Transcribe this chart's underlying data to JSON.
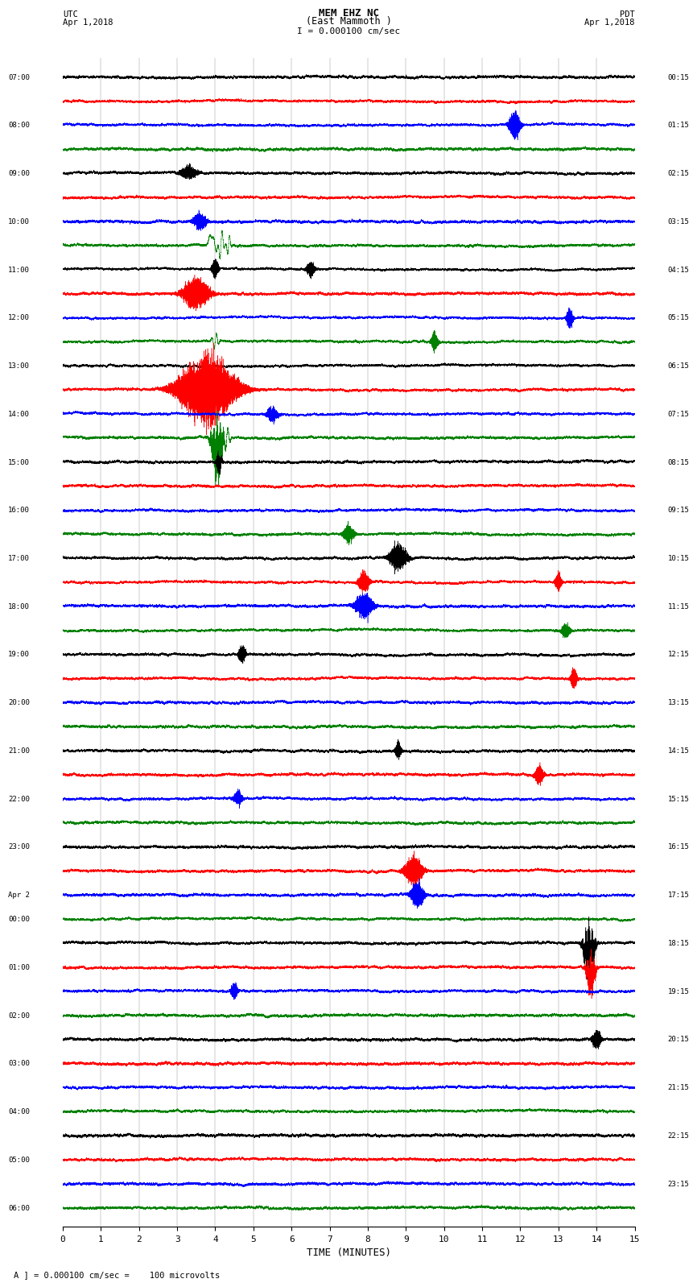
{
  "title_line1": "MEM EHZ NC",
  "title_line2": "(East Mammoth )",
  "title_line3": "I = 0.000100 cm/sec",
  "left_header_line1": "UTC",
  "left_header_line2": "Apr 1,2018",
  "right_header_line1": "PDT",
  "right_header_line2": "Apr 1,2018",
  "xlabel": "TIME (MINUTES)",
  "footer": "A ] = 0.000100 cm/sec =    100 microvolts",
  "utc_labels": [
    "07:00",
    "",
    "08:00",
    "",
    "09:00",
    "",
    "10:00",
    "",
    "11:00",
    "",
    "12:00",
    "",
    "13:00",
    "",
    "14:00",
    "",
    "15:00",
    "",
    "16:00",
    "",
    "17:00",
    "",
    "18:00",
    "",
    "19:00",
    "",
    "20:00",
    "",
    "21:00",
    "",
    "22:00",
    "",
    "23:00",
    "",
    "Apr 2",
    "00:00",
    "",
    "01:00",
    "",
    "02:00",
    "",
    "03:00",
    "",
    "04:00",
    "",
    "05:00",
    "",
    "06:00",
    ""
  ],
  "pdt_labels": [
    "00:15",
    "",
    "01:15",
    "",
    "02:15",
    "",
    "03:15",
    "",
    "04:15",
    "",
    "05:15",
    "",
    "06:15",
    "",
    "07:15",
    "",
    "08:15",
    "",
    "09:15",
    "",
    "10:15",
    "",
    "11:15",
    "",
    "12:15",
    "",
    "13:15",
    "",
    "14:15",
    "",
    "15:15",
    "",
    "16:15",
    "",
    "17:15",
    "",
    "18:15",
    "",
    "19:15",
    "",
    "20:15",
    "",
    "21:15",
    "",
    "22:15",
    "",
    "23:15",
    ""
  ],
  "num_traces": 48,
  "minutes": 15,
  "sample_rate": 50,
  "trace_colors_cycle": [
    "black",
    "red",
    "blue",
    "green"
  ],
  "background_color": "white",
  "noise_amplitude": 0.012,
  "fig_width": 8.5,
  "fig_height": 16.13,
  "special_events": [
    {
      "trace": 2,
      "minute": 11.85,
      "amplitude": 0.55,
      "duration": 0.5,
      "style": "burst"
    },
    {
      "trace": 4,
      "minute": 3.3,
      "amplitude": 0.25,
      "duration": 0.8,
      "style": "burst"
    },
    {
      "trace": 6,
      "minute": 3.6,
      "amplitude": 0.35,
      "duration": 0.6,
      "style": "burst"
    },
    {
      "trace": 7,
      "minute": 3.9,
      "amplitude": 1.8,
      "duration": 0.4,
      "style": "spike_multi"
    },
    {
      "trace": 7,
      "minute": 4.15,
      "amplitude": 1.5,
      "duration": 0.25,
      "style": "spike"
    },
    {
      "trace": 7,
      "minute": 4.35,
      "amplitude": 1.1,
      "duration": 0.2,
      "style": "spike"
    },
    {
      "trace": 8,
      "minute": 4.0,
      "amplitude": 0.4,
      "duration": 0.3,
      "style": "burst"
    },
    {
      "trace": 8,
      "minute": 6.5,
      "amplitude": 0.3,
      "duration": 0.4,
      "style": "burst"
    },
    {
      "trace": 9,
      "minute": 3.5,
      "amplitude": 0.6,
      "duration": 1.2,
      "style": "burst"
    },
    {
      "trace": 10,
      "minute": 13.3,
      "amplitude": 0.4,
      "duration": 0.3,
      "style": "burst"
    },
    {
      "trace": 11,
      "minute": 4.0,
      "amplitude": 0.8,
      "duration": 0.3,
      "style": "spike"
    },
    {
      "trace": 11,
      "minute": 9.75,
      "amplitude": 0.4,
      "duration": 0.3,
      "style": "burst"
    },
    {
      "trace": 13,
      "minute": 3.8,
      "amplitude": 1.3,
      "duration": 2.5,
      "style": "burst"
    },
    {
      "trace": 14,
      "minute": 5.5,
      "amplitude": 0.3,
      "duration": 0.5,
      "style": "burst"
    },
    {
      "trace": 15,
      "minute": 4.05,
      "amplitude": 2.2,
      "duration": 0.5,
      "style": "spike_down"
    },
    {
      "trace": 15,
      "minute": 4.3,
      "amplitude": 1.0,
      "duration": 0.3,
      "style": "spike"
    },
    {
      "trace": 16,
      "minute": 4.1,
      "amplitude": 0.4,
      "duration": 0.25,
      "style": "burst"
    },
    {
      "trace": 16,
      "minute": 4.15,
      "amplitude": 0.35,
      "duration": 0.15,
      "style": "spike"
    },
    {
      "trace": 19,
      "minute": 7.5,
      "amplitude": 0.35,
      "duration": 0.5,
      "style": "burst"
    },
    {
      "trace": 20,
      "minute": 8.8,
      "amplitude": 0.5,
      "duration": 0.8,
      "style": "burst"
    },
    {
      "trace": 21,
      "minute": 7.9,
      "amplitude": 0.4,
      "duration": 0.5,
      "style": "burst"
    },
    {
      "trace": 21,
      "minute": 13.0,
      "amplitude": 0.35,
      "duration": 0.3,
      "style": "burst"
    },
    {
      "trace": 22,
      "minute": 7.9,
      "amplitude": 0.5,
      "duration": 0.8,
      "style": "burst"
    },
    {
      "trace": 23,
      "minute": 13.2,
      "amplitude": 0.3,
      "duration": 0.4,
      "style": "burst"
    },
    {
      "trace": 24,
      "minute": 4.7,
      "amplitude": 0.4,
      "duration": 0.3,
      "style": "burst"
    },
    {
      "trace": 25,
      "minute": 13.4,
      "amplitude": 0.4,
      "duration": 0.3,
      "style": "burst"
    },
    {
      "trace": 28,
      "minute": 8.8,
      "amplitude": 0.3,
      "duration": 0.3,
      "style": "burst"
    },
    {
      "trace": 29,
      "minute": 12.5,
      "amplitude": 0.4,
      "duration": 0.4,
      "style": "burst"
    },
    {
      "trace": 30,
      "minute": 4.6,
      "amplitude": 0.3,
      "duration": 0.4,
      "style": "burst"
    },
    {
      "trace": 33,
      "minute": 9.2,
      "amplitude": 0.6,
      "duration": 0.8,
      "style": "burst"
    },
    {
      "trace": 34,
      "minute": 9.3,
      "amplitude": 0.5,
      "duration": 0.6,
      "style": "burst"
    },
    {
      "trace": 36,
      "minute": 13.8,
      "amplitude": 1.9,
      "duration": 0.5,
      "style": "spike_down"
    },
    {
      "trace": 37,
      "minute": 13.85,
      "amplitude": 1.5,
      "duration": 0.4,
      "style": "spike_down"
    },
    {
      "trace": 38,
      "minute": 4.5,
      "amplitude": 0.35,
      "duration": 0.3,
      "style": "burst"
    },
    {
      "trace": 40,
      "minute": 14.0,
      "amplitude": 0.4,
      "duration": 0.4,
      "style": "burst"
    }
  ]
}
